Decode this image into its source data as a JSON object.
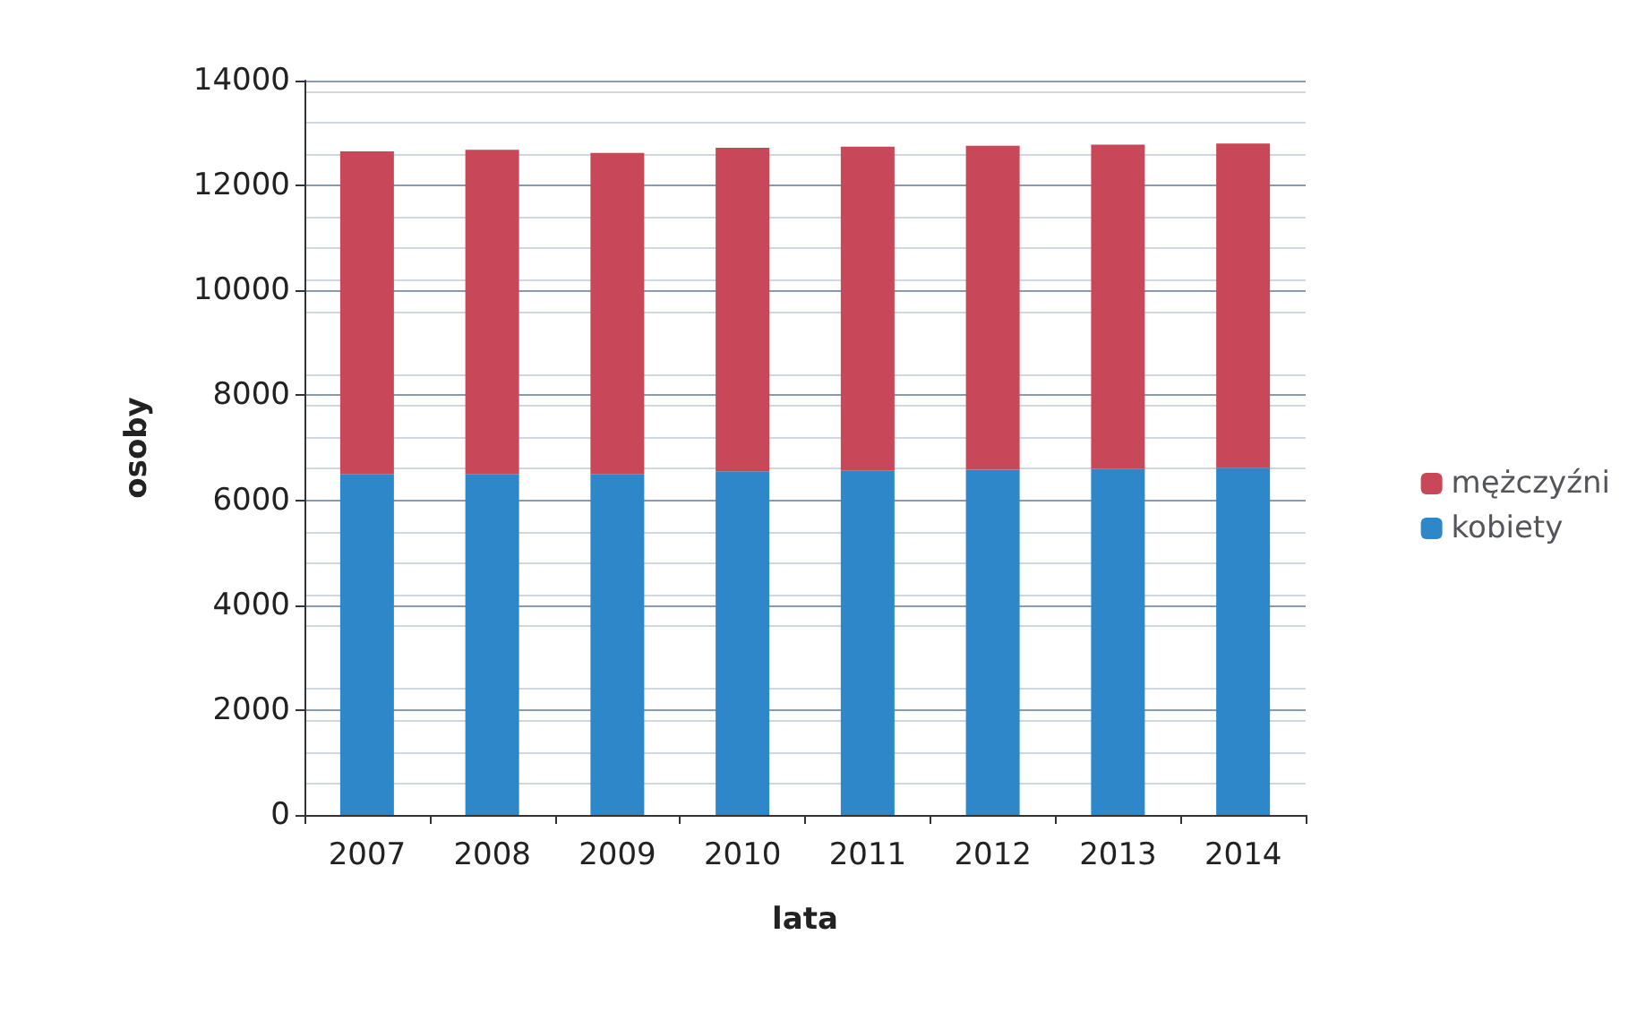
{
  "chart_data": {
    "type": "bar",
    "stacked": true,
    "xlabel": "lata",
    "ylabel": "osoby",
    "categories": [
      "2007",
      "2008",
      "2009",
      "2010",
      "2011",
      "2012",
      "2013",
      "2014"
    ],
    "series": [
      {
        "name": "kobiety",
        "color": "#2e87c8",
        "values": [
          6500,
          6500,
          6500,
          6550,
          6560,
          6580,
          6600,
          6620
        ]
      },
      {
        "name": "mężczyźni",
        "color": "#c8485a",
        "values": [
          6150,
          6180,
          6120,
          6170,
          6180,
          6180,
          6180,
          6180
        ]
      }
    ],
    "ylim": [
      0,
      14000
    ],
    "yticks": [
      0,
      2000,
      4000,
      6000,
      8000,
      10000,
      12000,
      14000
    ],
    "grid": "y",
    "legend": "right"
  }
}
